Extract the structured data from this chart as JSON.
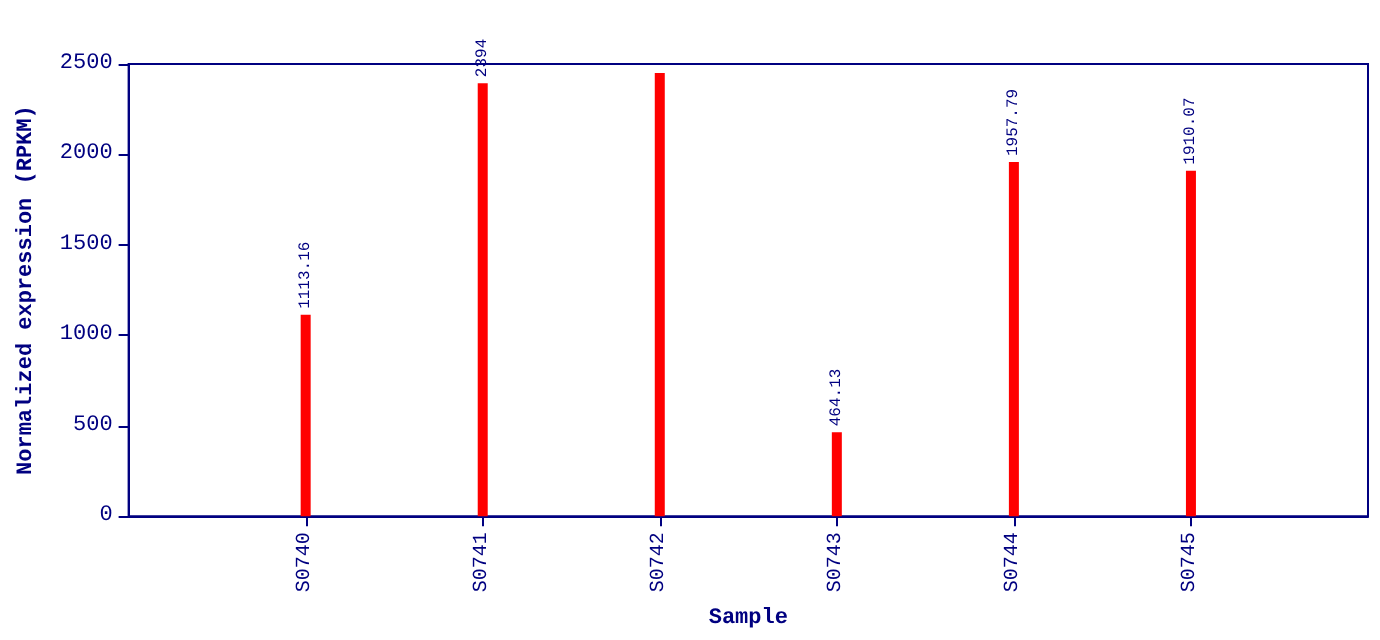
{
  "chart_data": {
    "type": "bar",
    "xlabel": "Sample",
    "ylabel": "Normalized expression (RPKM)",
    "categories": [
      "S0740",
      "S0741",
      "S0742",
      "S0743",
      "S0744",
      "S0745"
    ],
    "values": [
      1113.16,
      2394,
      2450,
      464.13,
      1957.79,
      1910.07
    ],
    "value_labels": [
      "1113.16",
      "2394",
      null,
      "464.13",
      "1957.79",
      "1910.07"
    ],
    "color": "#ff0000",
    "ylim": [
      0,
      2500
    ],
    "yticks": [
      0,
      500,
      1000,
      1500,
      2000,
      2500
    ],
    "grid": false
  }
}
